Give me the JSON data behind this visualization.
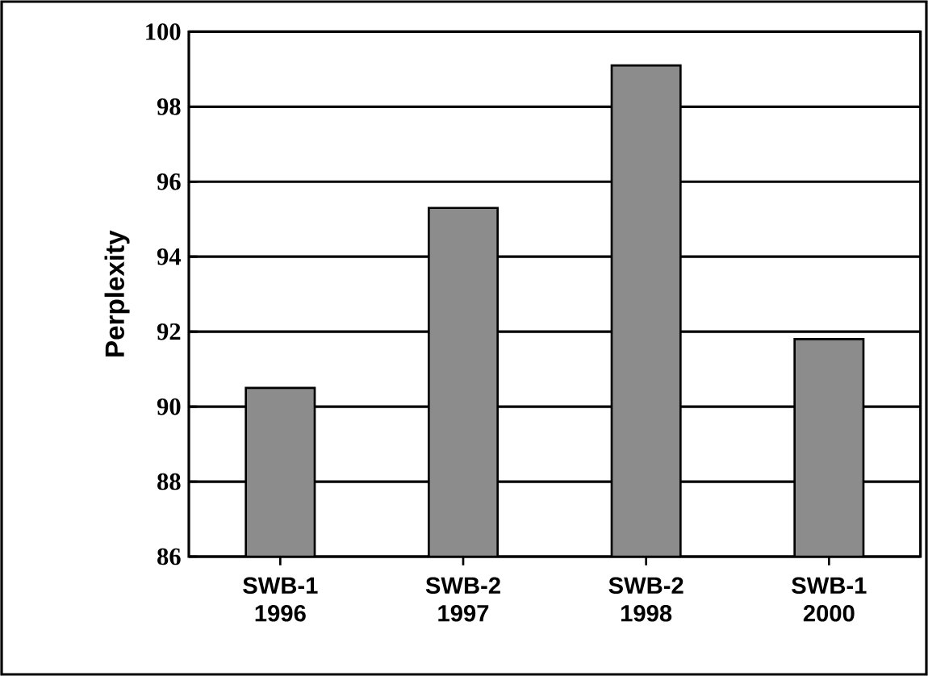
{
  "chart_data": {
    "type": "bar",
    "ylabel": "Perplexity",
    "categories": [
      "SWB-1 1996",
      "SWB-2 1997",
      "SWB-2 1998",
      "SWB-1 2000"
    ],
    "values": [
      90.5,
      95.3,
      99.1,
      91.8
    ],
    "color": "#8c8c8c",
    "ylim": [
      86,
      100
    ],
    "yticks": [
      86,
      88,
      90,
      92,
      94,
      96,
      98,
      100
    ],
    "grid": "y"
  }
}
